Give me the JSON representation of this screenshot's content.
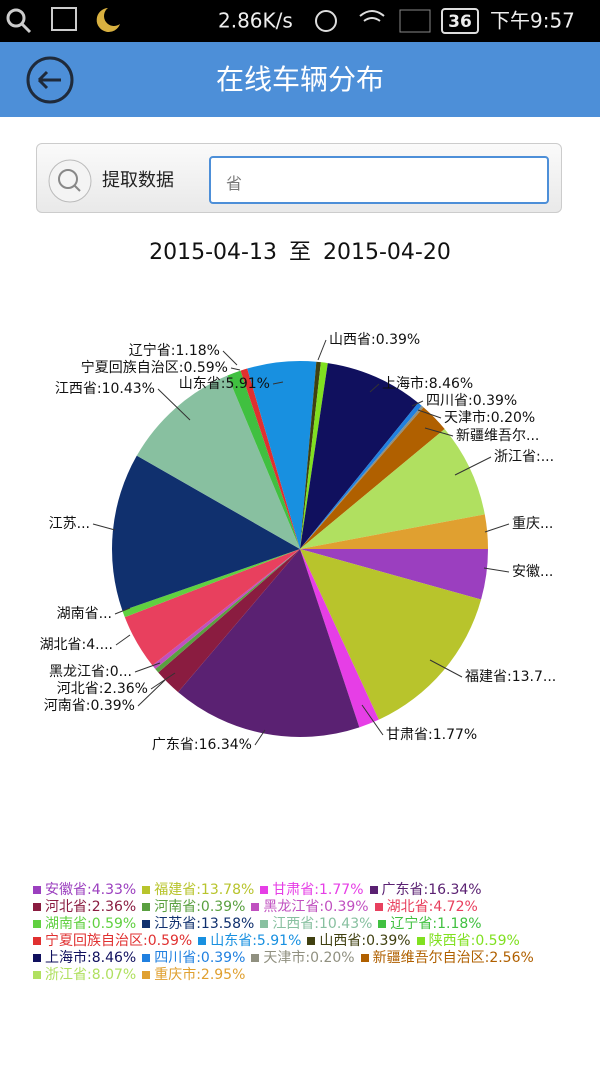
{
  "status_bar": {
    "speed": "2.86K/s",
    "battery": "36",
    "time": "下午9:57"
  },
  "header": {
    "title": "在线车辆分布"
  },
  "search": {
    "button": "提取数据",
    "placeholder": "省"
  },
  "date_range": {
    "start": "2015-04-13",
    "separator": "至",
    "end": "2015-04-20"
  },
  "chart_data": {
    "type": "pie",
    "categories": [
      "安徽省:4.33%",
      "福建省:13.78%",
      "甘肃省:1.77%",
      "广东省:16.34%",
      "河北省:2.36%",
      "河南省:0.39%",
      "黑龙江省:0.39%",
      "湖北省:4.72%",
      "湖南省:0.59%",
      "江苏省:13.58%",
      "江西省:10.43%",
      "辽宁省:1.18%",
      "宁夏回族自治区:0.59%",
      "山东省:5.91%",
      "山西省:0.39%",
      "陕西省:0.59%",
      "上海市:8.46%",
      "四川省:0.39%",
      "天津市:0.20%",
      "新疆维吾尔自治区:2.56%",
      "浙江省:8.07%",
      "重庆市:2.95%"
    ],
    "values": [
      4.33,
      13.78,
      1.77,
      16.34,
      2.36,
      0.39,
      0.39,
      4.72,
      0.59,
      13.58,
      10.43,
      1.18,
      0.59,
      5.91,
      0.39,
      0.59,
      8.46,
      0.39,
      0.2,
      2.56,
      8.07,
      2.95
    ],
    "slice_labels": [
      "安徽...",
      "福建省:13.7...",
      "甘肃省:1.77%",
      "广东省:16.34%",
      "河北省:2.36%",
      "河南省:0.39%",
      "黑龙江省:0...",
      "湖北省:4....",
      "湖南省...",
      "江苏...",
      "江西省:10.43%",
      "辽宁省:1.18%",
      "宁夏回族自治区:0.59%",
      "山东省:5.91%",
      "山西省:0.39%",
      null,
      "上海市:8.46%",
      "四川省:0.39%",
      "天津市:0.20%",
      "新疆维吾尔...",
      "浙江省:...",
      "重庆..."
    ],
    "colors": [
      "#9b3fbf",
      "#b8c42c",
      "#e63ee6",
      "#5a2172",
      "#8a1c40",
      "#5aa040",
      "#c050c0",
      "#e8405e",
      "#60d040",
      "#10306e",
      "#88c0a0",
      "#40c040",
      "#e03030",
      "#1890e0",
      "#404010",
      "#80e020",
      "#10105e",
      "#2080e0",
      "#909080",
      "#b06000",
      "#b0e060",
      "#e0a030"
    ]
  }
}
